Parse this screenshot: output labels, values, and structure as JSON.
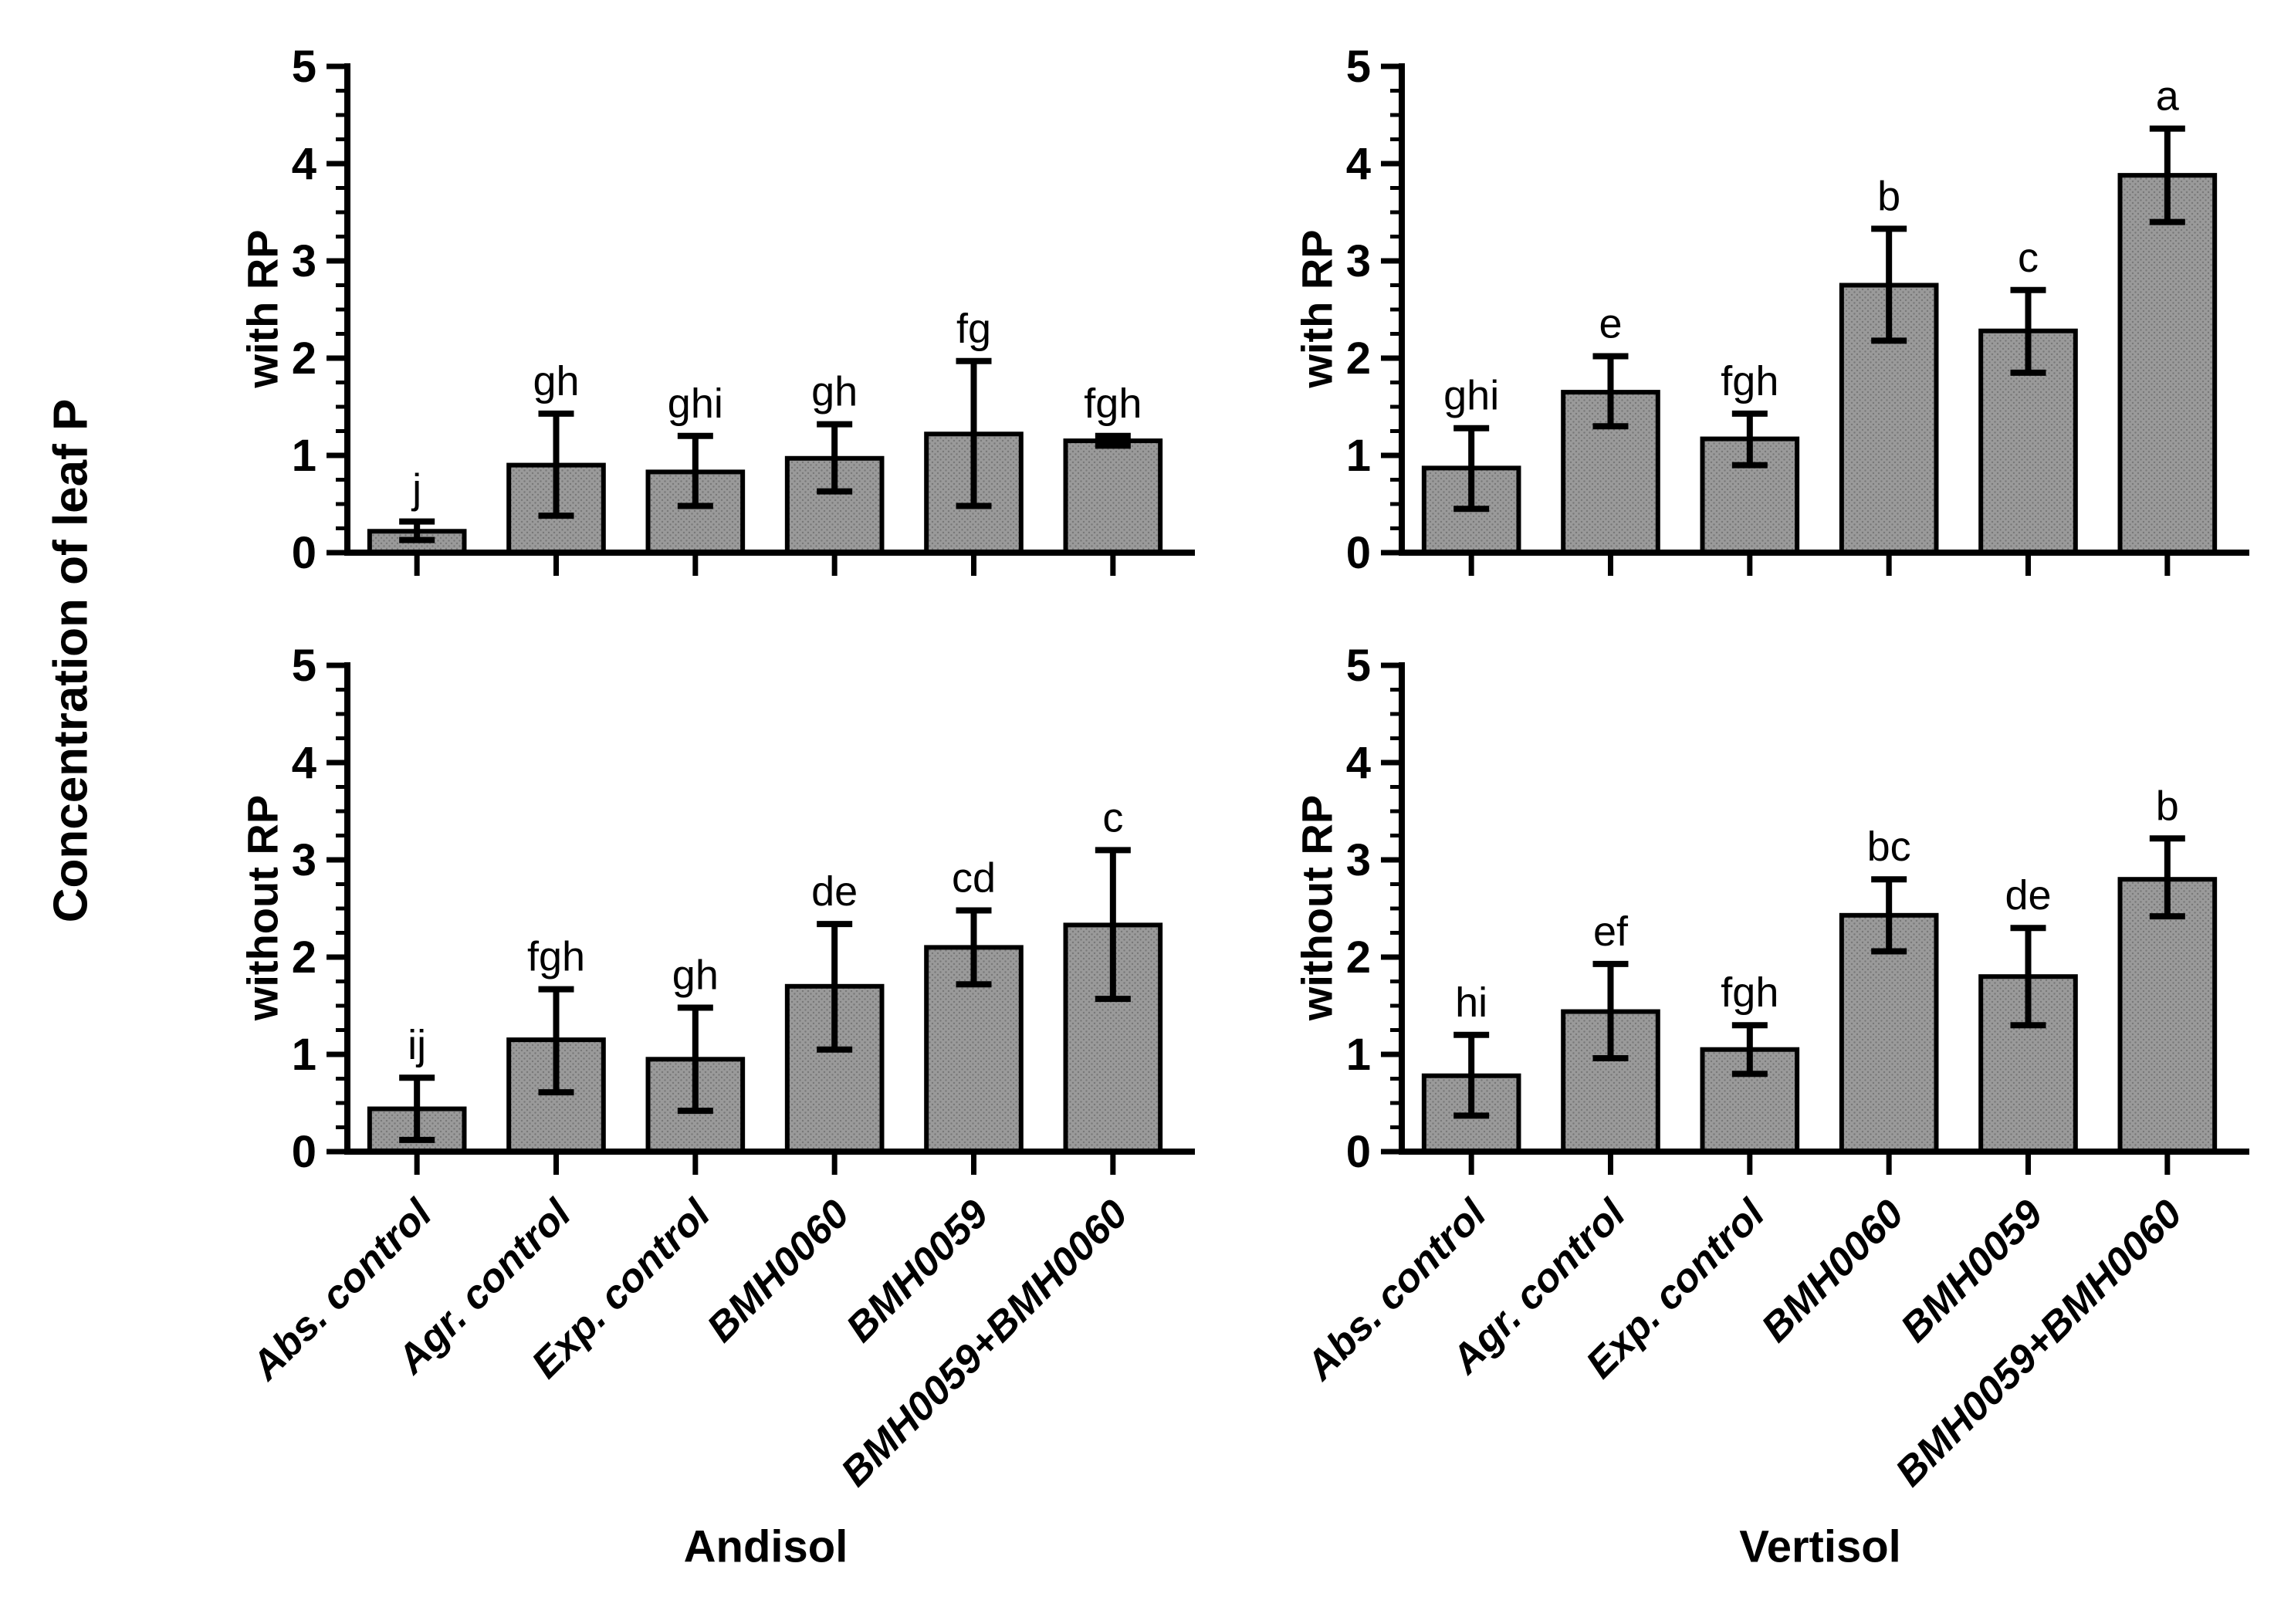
{
  "figure": {
    "ylabel": "Concentration of leaf P",
    "row_labels": [
      "with RP",
      "without RP"
    ],
    "col_titles": [
      "Andisol",
      "Vertisol"
    ],
    "bar_color": "#9a9a9a",
    "bar_dot_color": "#787878",
    "axis_color": "#000000",
    "y_ticks": [
      0,
      1,
      2,
      3,
      4,
      5
    ],
    "y_minor_step": 0.25
  },
  "chart_data": [
    {
      "type": "bar",
      "title": "Andisol with RP",
      "soil": "Andisol",
      "condition": "with RP",
      "ylim": [
        0,
        5
      ],
      "grid": false,
      "categories": [
        "Abs. control",
        "Agr. control",
        "Exp. control",
        "BMH0060",
        "BMH0059",
        "BMH0059+BMH0060"
      ],
      "values": [
        0.22,
        0.9,
        0.83,
        0.97,
        1.22,
        1.15
      ],
      "err_low": [
        0.13,
        0.38,
        0.48,
        0.63,
        0.48,
        1.1
      ],
      "err_high": [
        0.32,
        1.43,
        1.2,
        1.32,
        1.97,
        1.2
      ],
      "letters": [
        "j",
        "gh",
        "ghi",
        "gh",
        "fg",
        "fgh"
      ]
    },
    {
      "type": "bar",
      "title": "Vertisol with RP",
      "soil": "Vertisol",
      "condition": "with RP",
      "ylim": [
        0,
        5
      ],
      "grid": false,
      "categories": [
        "Abs. control",
        "Agr. control",
        "Exp. control",
        "BMH0060",
        "BMH0059",
        "BMH0059+BMH0060"
      ],
      "values": [
        0.87,
        1.65,
        1.17,
        2.75,
        2.28,
        3.88
      ],
      "err_low": [
        0.45,
        1.3,
        0.9,
        2.18,
        1.85,
        3.4
      ],
      "err_high": [
        1.28,
        2.02,
        1.43,
        3.33,
        2.7,
        4.36
      ],
      "letters": [
        "ghi",
        "e",
        "fgh",
        "b",
        "c",
        "a"
      ]
    },
    {
      "type": "bar",
      "title": "Andisol without RP",
      "soil": "Andisol",
      "condition": "without RP",
      "ylim": [
        0,
        5
      ],
      "grid": false,
      "categories": [
        "Abs. control",
        "Agr. control",
        "Exp. control",
        "BMH0060",
        "BMH0059",
        "BMH0059+BMH0060"
      ],
      "values": [
        0.44,
        1.15,
        0.95,
        1.7,
        2.1,
        2.33
      ],
      "err_low": [
        0.12,
        0.61,
        0.42,
        1.05,
        1.72,
        1.57
      ],
      "err_high": [
        0.76,
        1.67,
        1.48,
        2.34,
        2.48,
        3.1
      ],
      "letters": [
        "ij",
        "fgh",
        "gh",
        "de",
        "cd",
        "c"
      ]
    },
    {
      "type": "bar",
      "title": "Vertisol without RP",
      "soil": "Vertisol",
      "condition": "without RP",
      "ylim": [
        0,
        5
      ],
      "grid": false,
      "categories": [
        "Abs. control",
        "Agr. control",
        "Exp. control",
        "BMH0060",
        "BMH0059",
        "BMH0059+BMH0060"
      ],
      "values": [
        0.78,
        1.44,
        1.05,
        2.43,
        1.8,
        2.8
      ],
      "err_low": [
        0.37,
        0.96,
        0.8,
        2.06,
        1.3,
        2.42
      ],
      "err_high": [
        1.2,
        1.93,
        1.3,
        2.8,
        2.3,
        3.22
      ],
      "letters": [
        "hi",
        "ef",
        "fgh",
        "bc",
        "de",
        "b"
      ]
    }
  ]
}
